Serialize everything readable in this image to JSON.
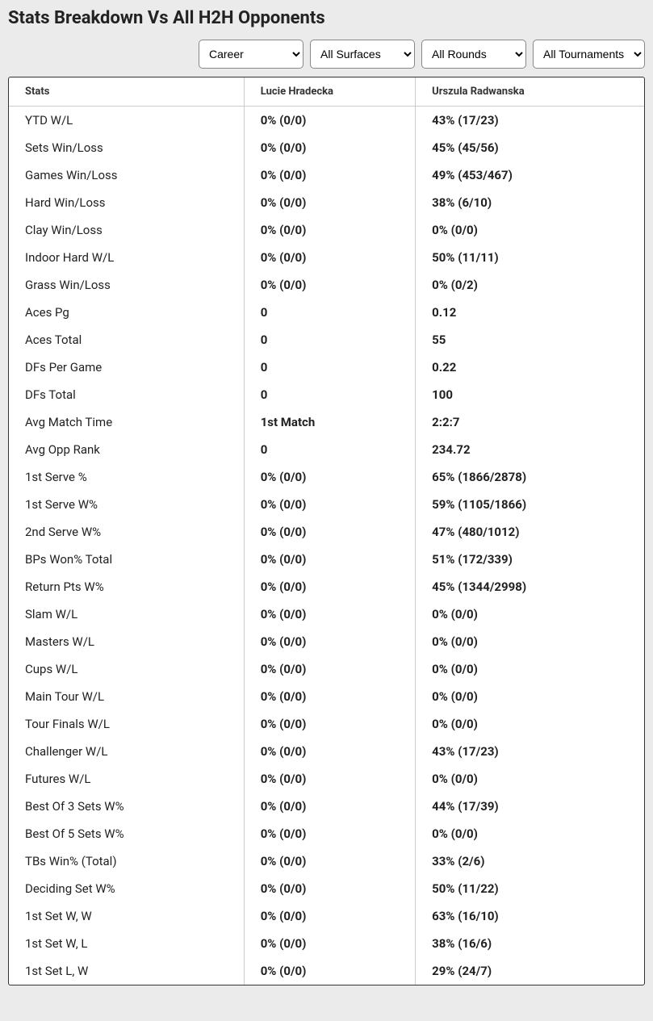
{
  "title": "Stats Breakdown Vs All H2H Opponents",
  "filters": {
    "period": "Career",
    "surface": "All Surfaces",
    "round": "All Rounds",
    "tournament": "All Tournaments"
  },
  "columns": {
    "stats": "Stats",
    "p1": "Lucie Hradecka",
    "p2": "Urszula Radwanska"
  },
  "rows": [
    {
      "stat": "YTD W/L",
      "p1": "0% (0/0)",
      "p2": "43% (17/23)"
    },
    {
      "stat": "Sets Win/Loss",
      "p1": "0% (0/0)",
      "p2": "45% (45/56)"
    },
    {
      "stat": "Games Win/Loss",
      "p1": "0% (0/0)",
      "p2": "49% (453/467)"
    },
    {
      "stat": "Hard Win/Loss",
      "p1": "0% (0/0)",
      "p2": "38% (6/10)"
    },
    {
      "stat": "Clay Win/Loss",
      "p1": "0% (0/0)",
      "p2": "0% (0/0)"
    },
    {
      "stat": "Indoor Hard W/L",
      "p1": "0% (0/0)",
      "p2": "50% (11/11)"
    },
    {
      "stat": "Grass Win/Loss",
      "p1": "0% (0/0)",
      "p2": "0% (0/2)"
    },
    {
      "stat": "Aces Pg",
      "p1": "0",
      "p2": "0.12"
    },
    {
      "stat": "Aces Total",
      "p1": "0",
      "p2": "55"
    },
    {
      "stat": "DFs Per Game",
      "p1": "0",
      "p2": "0.22"
    },
    {
      "stat": "DFs Total",
      "p1": "0",
      "p2": "100"
    },
    {
      "stat": "Avg Match Time",
      "p1": "1st Match",
      "p2": "2:2:7"
    },
    {
      "stat": "Avg Opp Rank",
      "p1": "0",
      "p2": "234.72"
    },
    {
      "stat": "1st Serve %",
      "p1": "0% (0/0)",
      "p2": "65% (1866/2878)"
    },
    {
      "stat": "1st Serve W%",
      "p1": "0% (0/0)",
      "p2": "59% (1105/1866)"
    },
    {
      "stat": "2nd Serve W%",
      "p1": "0% (0/0)",
      "p2": "47% (480/1012)"
    },
    {
      "stat": "BPs Won% Total",
      "p1": "0% (0/0)",
      "p2": "51% (172/339)"
    },
    {
      "stat": "Return Pts W%",
      "p1": "0% (0/0)",
      "p2": "45% (1344/2998)"
    },
    {
      "stat": "Slam W/L",
      "p1": "0% (0/0)",
      "p2": "0% (0/0)"
    },
    {
      "stat": "Masters W/L",
      "p1": "0% (0/0)",
      "p2": "0% (0/0)"
    },
    {
      "stat": "Cups W/L",
      "p1": "0% (0/0)",
      "p2": "0% (0/0)"
    },
    {
      "stat": "Main Tour W/L",
      "p1": "0% (0/0)",
      "p2": "0% (0/0)"
    },
    {
      "stat": "Tour Finals W/L",
      "p1": "0% (0/0)",
      "p2": "0% (0/0)"
    },
    {
      "stat": "Challenger W/L",
      "p1": "0% (0/0)",
      "p2": "43% (17/23)"
    },
    {
      "stat": "Futures W/L",
      "p1": "0% (0/0)",
      "p2": "0% (0/0)"
    },
    {
      "stat": "Best Of 3 Sets W%",
      "p1": "0% (0/0)",
      "p2": "44% (17/39)"
    },
    {
      "stat": "Best Of 5 Sets W%",
      "p1": "0% (0/0)",
      "p2": "0% (0/0)"
    },
    {
      "stat": "TBs Win% (Total)",
      "p1": "0% (0/0)",
      "p2": "33% (2/6)"
    },
    {
      "stat": "Deciding Set W%",
      "p1": "0% (0/0)",
      "p2": "50% (11/22)"
    },
    {
      "stat": "1st Set W, W",
      "p1": "0% (0/0)",
      "p2": "63% (16/10)"
    },
    {
      "stat": "1st Set W, L",
      "p1": "0% (0/0)",
      "p2": "38% (16/6)"
    },
    {
      "stat": "1st Set L, W",
      "p1": "0% (0/0)",
      "p2": "29% (24/7)"
    }
  ]
}
